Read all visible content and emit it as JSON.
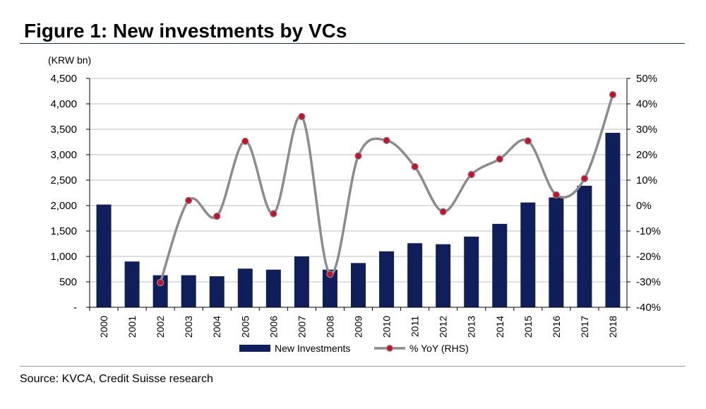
{
  "figure": {
    "title": "Figure 1: New investments by VCs",
    "source": "Source: KVCA, Credit Suisse research"
  },
  "colors": {
    "bar": "#0f1f5c",
    "line": "#8c8c8c",
    "marker": "#c8102e",
    "grid": "#bfbfbf",
    "rule": "#1b2f5f"
  },
  "chart_data": {
    "type": "bar",
    "title": "",
    "left_unit": "(KRW bn)",
    "categories": [
      "2000",
      "2001",
      "2002",
      "2003",
      "2004",
      "2005",
      "2006",
      "2007",
      "2008",
      "2009",
      "2010",
      "2011",
      "2012",
      "2013",
      "2014",
      "2015",
      "2016",
      "2017",
      "2018"
    ],
    "series": [
      {
        "name": "New Investments",
        "type": "bar",
        "axis": "left",
        "values": [
          2020,
          900,
          630,
          630,
          610,
          760,
          740,
          1000,
          740,
          870,
          1100,
          1260,
          1240,
          1390,
          1640,
          2060,
          2160,
          2390,
          3430
        ]
      },
      {
        "name": "% YoY (RHS)",
        "type": "line",
        "axis": "right",
        "values": [
          null,
          null,
          -30.3,
          2.0,
          -4.2,
          25.3,
          -3.2,
          35.0,
          -27.0,
          19.5,
          25.6,
          15.3,
          -2.4,
          12.2,
          18.3,
          25.4,
          4.2,
          10.6,
          43.6
        ]
      }
    ],
    "y_left": {
      "min": 0,
      "max": 4500,
      "ticks": [
        "-",
        "500",
        "1,000",
        "1,500",
        "2,000",
        "2,500",
        "3,000",
        "3,500",
        "4,000",
        "4,500"
      ]
    },
    "y_right": {
      "min": -40,
      "max": 50,
      "ticks": [
        "-40%",
        "-30%",
        "-20%",
        "-10%",
        "0%",
        "10%",
        "20%",
        "30%",
        "40%",
        "50%"
      ]
    },
    "grid": true,
    "legend_position": "bottom"
  }
}
